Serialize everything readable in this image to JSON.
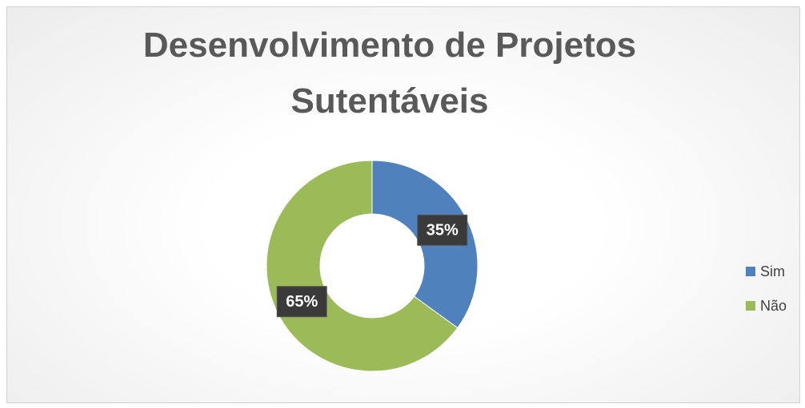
{
  "chart_data": {
    "type": "donut",
    "title": "Desenvolvimento de Projetos Sutentáveis",
    "categories": [
      "Sim",
      "Não"
    ],
    "values": [
      35,
      65
    ],
    "value_labels": [
      "35%",
      "65%"
    ],
    "colors": [
      "#4f81bd",
      "#9bbb59"
    ],
    "legend": "right"
  }
}
